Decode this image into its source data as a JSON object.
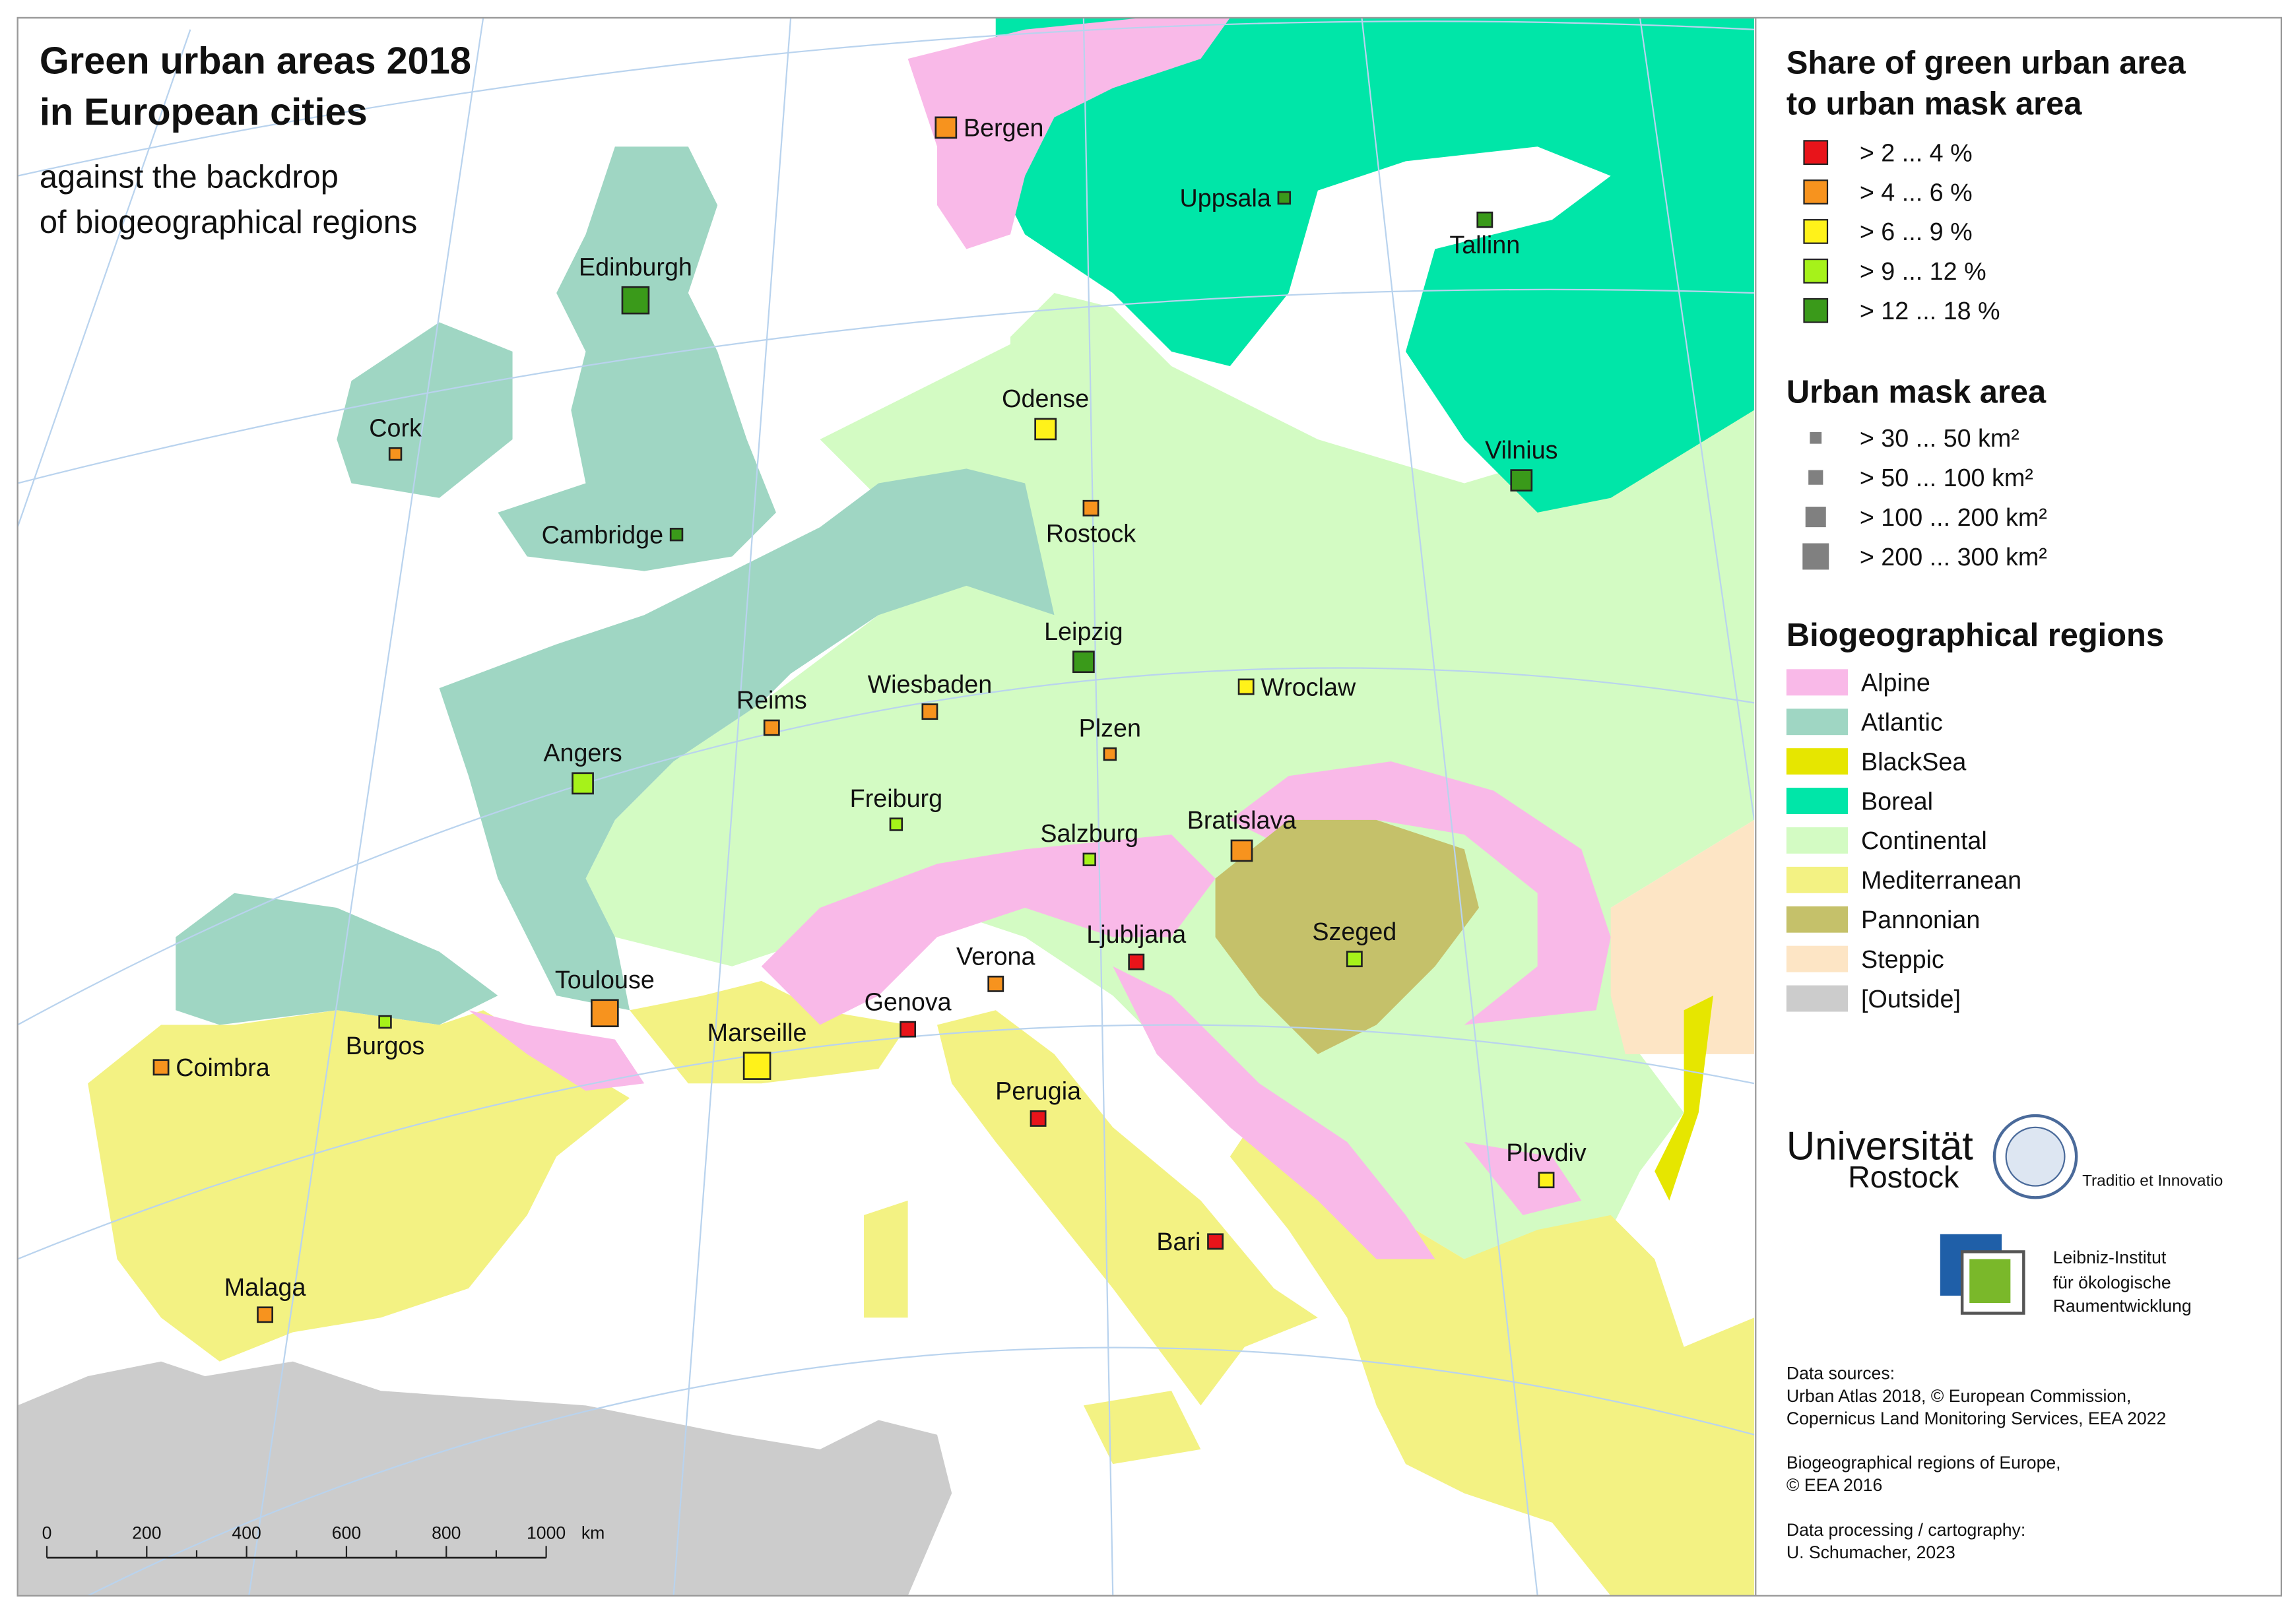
{
  "title": [
    "Green urban areas 2018",
    "in European cities"
  ],
  "subtitle": [
    "against the backdrop",
    "of biogeographical regions"
  ],
  "cities": [
    {
      "name": "Bergen",
      "share_class": 1,
      "size_class": 2
    },
    {
      "name": "Uppsala",
      "share_class": 4,
      "size_class": 0
    },
    {
      "name": "Tallinn",
      "share_class": 4,
      "size_class": 1
    },
    {
      "name": "Edinburgh",
      "share_class": 4,
      "size_class": 3
    },
    {
      "name": "Odense",
      "share_class": 2,
      "size_class": 2
    },
    {
      "name": "Cork",
      "share_class": 1,
      "size_class": 0
    },
    {
      "name": "Vilnius",
      "share_class": 4,
      "size_class": 2
    },
    {
      "name": "Cambridge",
      "share_class": 4,
      "size_class": 0
    },
    {
      "name": "Rostock",
      "share_class": 1,
      "size_class": 1
    },
    {
      "name": "Leipzig",
      "share_class": 4,
      "size_class": 2
    },
    {
      "name": "Wroclaw",
      "share_class": 2,
      "size_class": 1
    },
    {
      "name": "Reims",
      "share_class": 1,
      "size_class": 1
    },
    {
      "name": "Wiesbaden",
      "share_class": 1,
      "size_class": 1
    },
    {
      "name": "Plzen",
      "share_class": 1,
      "size_class": 0
    },
    {
      "name": "Angers",
      "share_class": 3,
      "size_class": 2
    },
    {
      "name": "Freiburg",
      "share_class": 3,
      "size_class": 0
    },
    {
      "name": "Salzburg",
      "share_class": 3,
      "size_class": 0
    },
    {
      "name": "Bratislava",
      "share_class": 1,
      "size_class": 2
    },
    {
      "name": "Ljubljana",
      "share_class": 0,
      "size_class": 1
    },
    {
      "name": "Szeged",
      "share_class": 3,
      "size_class": 1
    },
    {
      "name": "Verona",
      "share_class": 1,
      "size_class": 1
    },
    {
      "name": "Toulouse",
      "share_class": 1,
      "size_class": 3
    },
    {
      "name": "Genova",
      "share_class": 0,
      "size_class": 1
    },
    {
      "name": "Burgos",
      "share_class": 3,
      "size_class": 0
    },
    {
      "name": "Coimbra",
      "share_class": 1,
      "size_class": 1
    },
    {
      "name": "Marseille",
      "share_class": 2,
      "size_class": 3
    },
    {
      "name": "Perugia",
      "share_class": 0,
      "size_class": 1
    },
    {
      "name": "Plovdiv",
      "share_class": 2,
      "size_class": 1
    },
    {
      "name": "Bari",
      "share_class": 0,
      "size_class": 1
    },
    {
      "name": "Malaga",
      "share_class": 1,
      "size_class": 1
    }
  ],
  "legend": {
    "share": {
      "title": [
        "Share of green urban area",
        "to urban mask area"
      ],
      "items": [
        {
          "label": ">  2 ...  4 %",
          "color": "#e8141a"
        },
        {
          "label": ">  4 ...  6 %",
          "color": "#f7931e"
        },
        {
          "label": ">  6 ...  9 %",
          "color": "#fff21a"
        },
        {
          "label": ">  9 ... 12 %",
          "color": "#a6f21a"
        },
        {
          "label": "> 12 ... 18 %",
          "color": "#3a9a1a"
        }
      ]
    },
    "area": {
      "title": "Urban mask area",
      "color": "#808080",
      "items": [
        {
          "label": ">  30 ...  50 km²"
        },
        {
          "label": ">  50 ... 100 km²"
        },
        {
          "label": "> 100 ... 200 km²"
        },
        {
          "label": "> 200 ... 300 km²"
        }
      ]
    },
    "regions": {
      "title": "Biogeographical regions",
      "items": [
        {
          "label": "Alpine",
          "color": "#f9b9e8"
        },
        {
          "label": "Atlantic",
          "color": "#9fd6c3"
        },
        {
          "label": "BlackSea",
          "color": "#e6e600"
        },
        {
          "label": "Boreal",
          "color": "#00e6a8"
        },
        {
          "label": "Continental",
          "color": "#d3fbc3"
        },
        {
          "label": "Mediterranean",
          "color": "#f3f283"
        },
        {
          "label": "Pannonian",
          "color": "#c5c16a"
        },
        {
          "label": "Steppic",
          "color": "#fde5c5"
        },
        {
          "label": "[Outside]",
          "color": "#cccccc"
        }
      ]
    }
  },
  "scale_bar": {
    "labels": [
      "0",
      "200",
      "400",
      "600",
      "800",
      "1000"
    ],
    "unit": "km"
  },
  "logos": {
    "rostock": [
      "Universität",
      "Rostock",
      "Traditio et Innovatio"
    ],
    "leibniz": [
      "Leibniz-Institut",
      "für ökologische",
      "Raumentwicklung"
    ]
  },
  "sources": [
    [
      "Data sources:",
      "Urban Atlas 2018, © European Commission,",
      "Copernicus Land Monitoring Services, EEA 2022"
    ],
    [
      "Biogeographical regions of Europe,",
      "© EEA 2016"
    ],
    [
      "Data processing / cartography:",
      "U. Schumacher, 2023"
    ]
  ]
}
